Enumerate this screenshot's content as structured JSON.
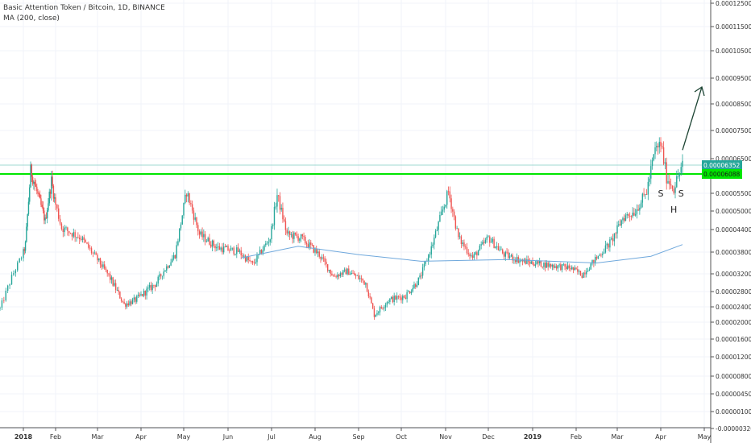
{
  "legend": {
    "title": "Basic Attention Token / Bitcoin, 1D, BINANCE",
    "indicator": "MA (200, close)"
  },
  "colors": {
    "up": "#26a69a",
    "down": "#ef5350",
    "ma": "#6fa8dc",
    "resistance": "#00e600",
    "price_badge": "#26a69a",
    "level_badge": "#00e600",
    "arrow": "#1b4332",
    "grid": "#f0f3fa",
    "axis_text": "#333333"
  },
  "chart_data": {
    "type": "candlestick",
    "title": "Basic Attention Token / Bitcoin, 1D, BINANCE",
    "x_tick_labels": [
      "2018",
      "Feb",
      "Mar",
      "Apr",
      "May",
      "Jun",
      "Jul",
      "Aug",
      "Sep",
      "Oct",
      "Nov",
      "Dec",
      "2019",
      "Feb",
      "Mar",
      "Apr",
      "May"
    ],
    "y_tick_labels": [
      "0.00012500",
      "0.00011500",
      "0.00010500",
      "0.00009500",
      "0.00008500",
      "0.00007500",
      "0.00006500",
      "0.00005500",
      "0.00005000",
      "0.00004400",
      "0.00003800",
      "0.00003200",
      "0.00002800",
      "0.00002400",
      "0.00002000",
      "0.00001600",
      "0.00001200",
      "0.00000800",
      "0.00000450",
      "0.00000100",
      "-0.00000320"
    ],
    "price_label": "0.00006352",
    "level_label": "0.00006088",
    "annotations": [
      "S",
      "H",
      "S"
    ],
    "date_range": [
      "2017-12-20",
      "2019-04-16"
    ],
    "anchors": [
      {
        "date": "2017-12-20",
        "close": 2.3e-05
      },
      {
        "date": "2018-01-03",
        "close": 4e-05
      },
      {
        "date": "2018-01-08",
        "close": 6.2e-05
      },
      {
        "date": "2018-01-14",
        "close": 5.6e-05
      },
      {
        "date": "2018-01-22",
        "close": 4.7e-05
      },
      {
        "date": "2018-01-28",
        "close": 5.9e-05
      },
      {
        "date": "2018-02-05",
        "close": 4.5e-05
      },
      {
        "date": "2018-02-18",
        "close": 4.2e-05
      },
      {
        "date": "2018-03-01",
        "close": 3.55e-05
      },
      {
        "date": "2018-03-20",
        "close": 2.4e-05
      },
      {
        "date": "2018-03-28",
        "close": 2.5e-05
      },
      {
        "date": "2018-04-12",
        "close": 2.9e-05
      },
      {
        "date": "2018-04-25",
        "close": 3.7e-05
      },
      {
        "date": "2018-05-03",
        "close": 5.6e-05
      },
      {
        "date": "2018-05-12",
        "close": 4.3e-05
      },
      {
        "date": "2018-05-25",
        "close": 3.9e-05
      },
      {
        "date": "2018-06-08",
        "close": 3.8e-05
      },
      {
        "date": "2018-06-18",
        "close": 3.4e-05
      },
      {
        "date": "2018-06-30",
        "close": 4.2e-05
      },
      {
        "date": "2018-07-05",
        "close": 5.5e-05
      },
      {
        "date": "2018-07-12",
        "close": 4.3e-05
      },
      {
        "date": "2018-07-22",
        "close": 4.2e-05
      },
      {
        "date": "2018-08-04",
        "close": 3.7e-05
      },
      {
        "date": "2018-08-14",
        "close": 3.05e-05
      },
      {
        "date": "2018-08-24",
        "close": 3.2e-05
      },
      {
        "date": "2018-09-06",
        "close": 2.9e-05
      },
      {
        "date": "2018-09-12",
        "close": 2.15e-05
      },
      {
        "date": "2018-09-22",
        "close": 2.5e-05
      },
      {
        "date": "2018-10-04",
        "close": 2.6e-05
      },
      {
        "date": "2018-10-14",
        "close": 3e-05
      },
      {
        "date": "2018-10-22",
        "close": 3.9e-05
      },
      {
        "date": "2018-11-03",
        "close": 5.6e-05
      },
      {
        "date": "2018-11-10",
        "close": 4.2e-05
      },
      {
        "date": "2018-11-20",
        "close": 3.6e-05
      },
      {
        "date": "2018-12-01",
        "close": 4.2e-05
      },
      {
        "date": "2018-12-12",
        "close": 3.7e-05
      },
      {
        "date": "2018-12-25",
        "close": 3.5e-05
      },
      {
        "date": "2019-01-10",
        "close": 3.4e-05
      },
      {
        "date": "2019-01-28",
        "close": 3.3e-05
      },
      {
        "date": "2019-02-05",
        "close": 3.1e-05
      },
      {
        "date": "2019-02-15",
        "close": 3.6e-05
      },
      {
        "date": "2019-02-25",
        "close": 4.1e-05
      },
      {
        "date": "2019-03-05",
        "close": 4.8e-05
      },
      {
        "date": "2019-03-14",
        "close": 5e-05
      },
      {
        "date": "2019-03-22",
        "close": 5.6e-05
      },
      {
        "date": "2019-03-28",
        "close": 6.8e-05
      },
      {
        "date": "2019-04-01",
        "close": 7e-05
      },
      {
        "date": "2019-04-05",
        "close": 6e-05
      },
      {
        "date": "2019-04-10",
        "close": 5.7e-05
      },
      {
        "date": "2019-04-16",
        "close": 6.35e-05
      }
    ],
    "moving_average": [
      {
        "date": "2018-06-10",
        "value": 3.6e-05
      },
      {
        "date": "2018-07-20",
        "value": 3.95e-05
      },
      {
        "date": "2018-09-01",
        "value": 3.7e-05
      },
      {
        "date": "2018-10-15",
        "value": 3.5e-05
      },
      {
        "date": "2018-12-15",
        "value": 3.55e-05
      },
      {
        "date": "2019-02-15",
        "value": 3.45e-05
      },
      {
        "date": "2019-03-25",
        "value": 3.65e-05
      },
      {
        "date": "2019-04-16",
        "value": 4e-05
      }
    ],
    "horizontal_levels": [
      6.35e-05,
      6.09e-05
    ],
    "grid": true
  }
}
